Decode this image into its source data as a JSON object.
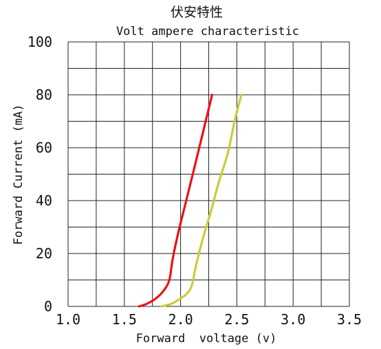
{
  "chart_data": {
    "type": "line",
    "title": "伏安特性",
    "subtitle": "Volt ampere characteristic",
    "xlabel": "Forward  voltage (v)",
    "ylabel": "Forward Current (mA)",
    "xlim": [
      1.0,
      3.5
    ],
    "ylim": [
      0,
      100
    ],
    "x_ticks": [
      1.0,
      1.5,
      2.0,
      2.5,
      3.0,
      3.5
    ],
    "x_tick_labels": [
      "1.0",
      "1.5",
      "2.0",
      "2.5",
      "3.0",
      "3.5"
    ],
    "y_ticks": [
      0,
      20,
      40,
      60,
      80,
      100
    ],
    "y_tick_labels": [
      "0",
      "20",
      "40",
      "60",
      "80",
      "100"
    ],
    "grid": true,
    "grid_x_step": 0.25,
    "grid_y_step": 10,
    "series": [
      {
        "color": "#ee1111",
        "x": [
          1.63,
          1.7,
          1.78,
          1.85,
          1.9,
          1.93,
          1.98,
          2.05,
          2.12,
          2.2,
          2.28
        ],
        "y": [
          0,
          1,
          3,
          6,
          10,
          18,
          28,
          40,
          52,
          66,
          80
        ]
      },
      {
        "color": "#c8cc3a",
        "x": [
          1.83,
          1.92,
          2.0,
          2.06,
          2.1,
          2.14,
          2.2,
          2.27,
          2.34,
          2.42,
          2.48,
          2.54
        ],
        "y": [
          0,
          1,
          3,
          5,
          8,
          16,
          26,
          36,
          47,
          58,
          70,
          80
        ]
      }
    ]
  }
}
